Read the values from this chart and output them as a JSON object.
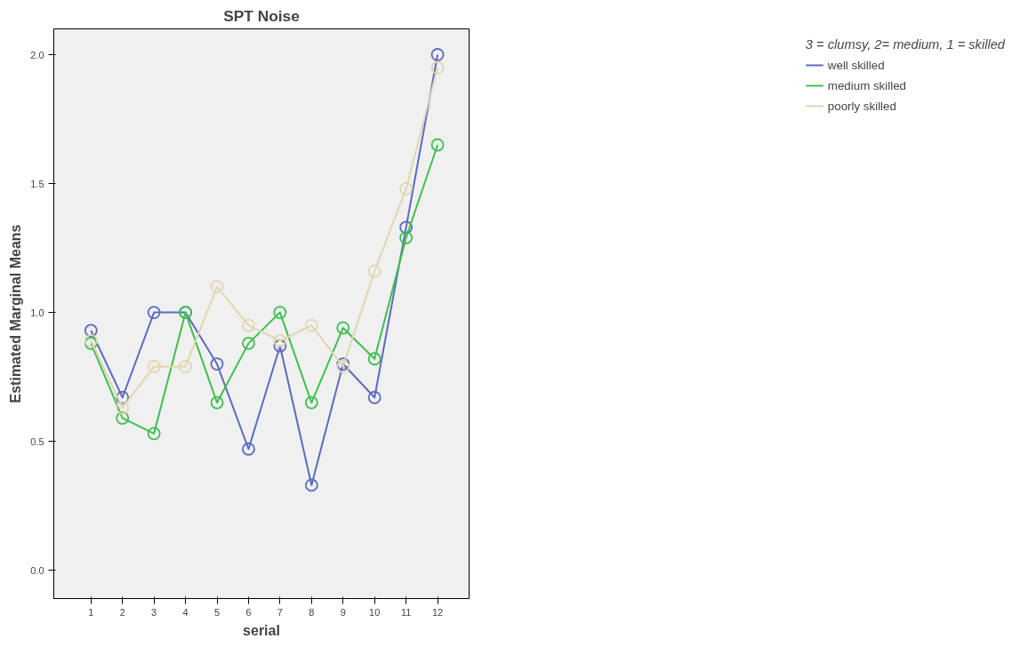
{
  "chart_data": {
    "type": "line",
    "title": "SPT Noise",
    "xlabel": "serial",
    "ylabel": "Estimated Marginal Means",
    "legend_title": "3 = clumsy, 2= medium, 1 = skilled",
    "x": [
      1,
      2,
      3,
      4,
      5,
      6,
      7,
      8,
      9,
      10,
      11,
      12
    ],
    "series": [
      {
        "name": "well skilled",
        "color": "#5b6bbf",
        "values": [
          0.93,
          0.67,
          1.0,
          1.0,
          0.8,
          0.47,
          0.87,
          0.33,
          0.8,
          0.67,
          1.33,
          2.0
        ]
      },
      {
        "name": "medium skilled",
        "color": "#3fbf4f",
        "values": [
          0.88,
          0.59,
          0.53,
          1.0,
          0.65,
          0.88,
          1.0,
          0.65,
          0.94,
          0.82,
          1.29,
          1.65
        ]
      },
      {
        "name": "poorly skilled",
        "color": "#e0d6b0",
        "values": [
          0.89,
          0.63,
          0.79,
          0.79,
          1.1,
          0.95,
          0.89,
          0.95,
          0.79,
          1.16,
          1.48,
          1.95
        ]
      }
    ],
    "xlim": [
      -0.18,
      13
    ],
    "ylim": [
      -0.11,
      2.1
    ],
    "xticks": [
      1,
      2,
      3,
      4,
      5,
      6,
      7,
      8,
      9,
      10,
      11,
      12
    ],
    "yticks": [
      {
        "value": 0,
        "label": "0.0"
      },
      {
        "value": 0.5,
        "label": "0.5"
      },
      {
        "value": 1,
        "label": "1.0"
      },
      {
        "value": 1.5,
        "label": "1.5"
      },
      {
        "value": 2,
        "label": "2.0"
      }
    ],
    "grid": false,
    "legend": "top right",
    "marker": "circle",
    "line_style": "solid"
  }
}
